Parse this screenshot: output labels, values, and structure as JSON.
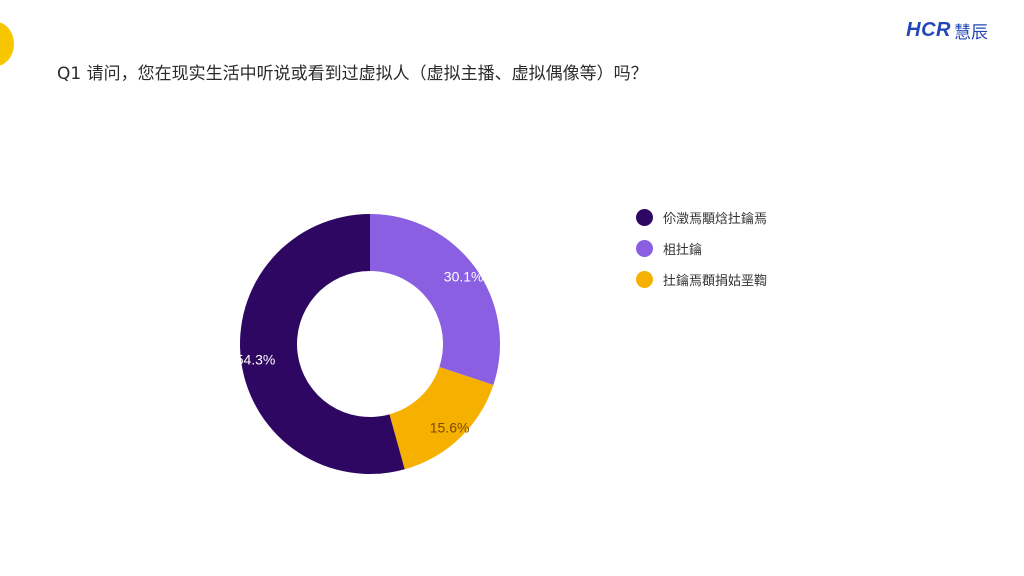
{
  "header": {
    "logo_latin": "HCR",
    "logo_cjk": "慧辰",
    "question": "Q1 请问，您在现实生活中听说或看到过虚拟人（虚拟主播、虚拟偶像等）吗？"
  },
  "colors": {
    "slice_1": "#2e0763",
    "slice_2": "#8a5fe2",
    "slice_3": "#f6b100",
    "accent_yellow": "#f7c600",
    "logo_blue": "#2347b8"
  },
  "chart_data": {
    "type": "pie",
    "style": "donut",
    "legend_position": "right",
    "series": [
      {
        "name": "伱澂焉顒焓扗鑰焉",
        "value": 54.3,
        "label": "54.3%",
        "color": "#2e0763"
      },
      {
        "name": "柤扗鑰",
        "value": 30.1,
        "label": "30.1%",
        "color": "#8a5fe2"
      },
      {
        "name": "扗鑰焉頵捐姑垩鞫",
        "value": 15.6,
        "label": "15.6%",
        "color": "#f6b100"
      }
    ]
  }
}
